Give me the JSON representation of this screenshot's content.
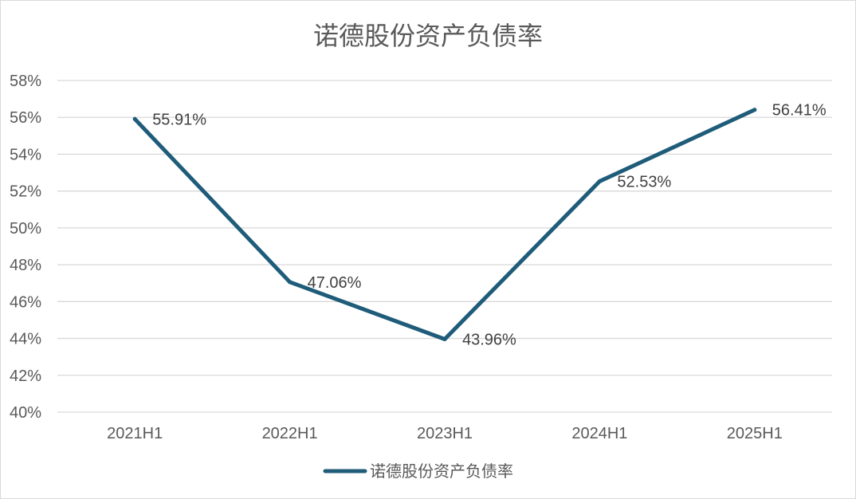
{
  "chart_data": {
    "type": "line",
    "title": "诺德股份资产负债率",
    "xlabel": "",
    "ylabel": "",
    "categories": [
      "2021H1",
      "2022H1",
      "2023H1",
      "2024H1",
      "2025H1"
    ],
    "series": [
      {
        "name": "诺德股份资产负债率",
        "values": [
          55.91,
          47.06,
          43.96,
          52.53,
          56.41
        ],
        "labels": [
          "55.91%",
          "47.06%",
          "43.96%",
          "52.53%",
          "56.41%"
        ],
        "color": "#1f5c7a"
      }
    ],
    "ylim": [
      40,
      58
    ],
    "yticks": [
      "40%",
      "42%",
      "44%",
      "46%",
      "48%",
      "50%",
      "52%",
      "54%",
      "56%",
      "58%"
    ],
    "grid": true,
    "legend": "bottom"
  }
}
